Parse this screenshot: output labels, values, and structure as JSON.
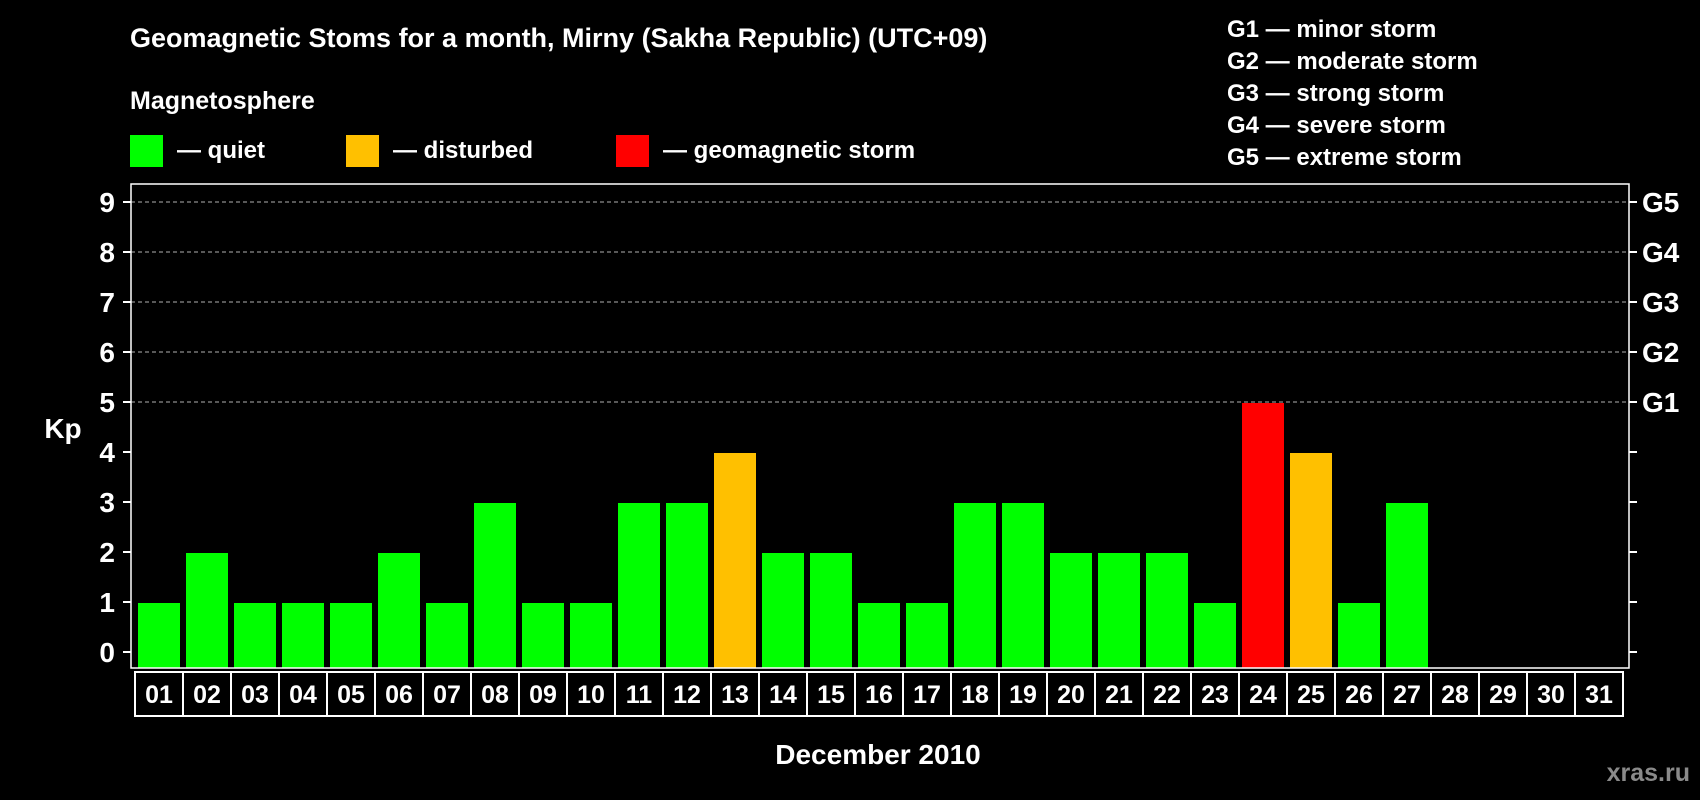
{
  "header": {
    "title": "Geomagnetic Stoms for a month, Mirny (Sakha Republic) (UTC+09)",
    "subtitle": "Magnetosphere"
  },
  "legend": {
    "items": [
      {
        "label": "— quiet",
        "color": "#00ff00"
      },
      {
        "label": "— disturbed",
        "color": "#ffc000"
      },
      {
        "label": "— geomagnetic storm",
        "color": "#ff0000"
      }
    ]
  },
  "storm_scale": [
    "G1 — minor storm",
    "G2 — moderate storm",
    "G3 — strong storm",
    "G4 — severe storm",
    "G5 — extreme storm"
  ],
  "watermark": "xras.ru",
  "chart_data": {
    "type": "bar",
    "ylabel": "Kp",
    "xlabel": "December 2010",
    "ylim": [
      0,
      9
    ],
    "yticks": [
      "0",
      "1",
      "2",
      "3",
      "4",
      "5",
      "6",
      "7",
      "8",
      "9"
    ],
    "right_axis_labels": [
      {
        "value": 5,
        "label": "G1"
      },
      {
        "value": 6,
        "label": "G2"
      },
      {
        "value": 7,
        "label": "G3"
      },
      {
        "value": 8,
        "label": "G4"
      },
      {
        "value": 9,
        "label": "G5"
      }
    ],
    "grid_dashed_from": 5,
    "categories": [
      "01",
      "02",
      "03",
      "04",
      "05",
      "06",
      "07",
      "08",
      "09",
      "10",
      "11",
      "12",
      "13",
      "14",
      "15",
      "16",
      "17",
      "18",
      "19",
      "20",
      "21",
      "22",
      "23",
      "24",
      "25",
      "26",
      "27",
      "28",
      "29",
      "30",
      "31"
    ],
    "values": [
      1,
      2,
      1,
      1,
      1,
      2,
      1,
      3,
      1,
      1,
      3,
      3,
      4,
      2,
      2,
      1,
      1,
      3,
      3,
      2,
      2,
      2,
      1,
      5,
      4,
      1,
      3,
      null,
      null,
      null,
      null
    ],
    "colors": {
      "quiet": "#00ff00",
      "disturbed": "#ffc000",
      "storm": "#ff0000"
    }
  }
}
